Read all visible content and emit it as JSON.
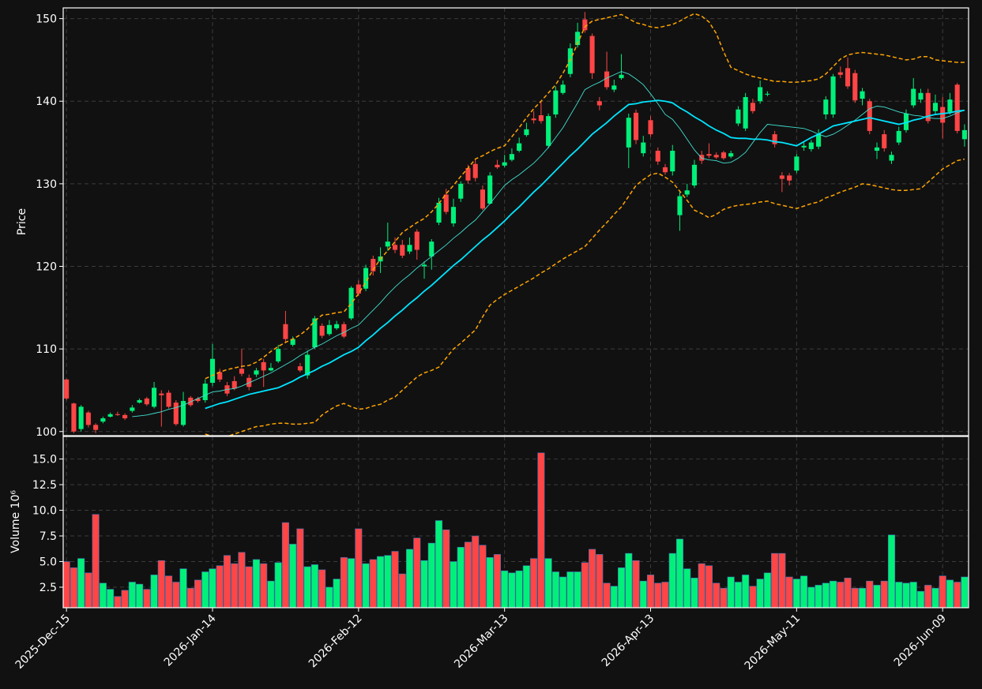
{
  "chart_data": {
    "type": "candlestick",
    "ylabel": "Price",
    "ylim": [
      99.5,
      151.3
    ],
    "yticks": [
      100,
      110,
      120,
      130,
      140,
      150
    ],
    "grid": true,
    "up_color": "#00f07a",
    "down_color": "#ff4545",
    "categories": [
      "2025-Dec-15",
      null,
      null,
      null,
      null,
      null,
      null,
      null,
      null,
      null,
      null,
      null,
      null,
      null,
      null,
      null,
      null,
      null,
      null,
      null,
      "2026-Jan-14",
      null,
      null,
      null,
      null,
      null,
      null,
      null,
      null,
      null,
      null,
      null,
      null,
      null,
      null,
      null,
      null,
      null,
      null,
      null,
      "2026-Feb-12",
      null,
      null,
      null,
      null,
      null,
      null,
      null,
      null,
      null,
      null,
      null,
      null,
      null,
      null,
      null,
      null,
      null,
      null,
      null,
      "2026-Mar-13",
      null,
      null,
      null,
      null,
      null,
      null,
      null,
      null,
      null,
      null,
      null,
      null,
      null,
      null,
      null,
      null,
      null,
      null,
      null,
      "2026-Apr-13",
      null,
      null,
      null,
      null,
      null,
      null,
      null,
      null,
      null,
      null,
      null,
      null,
      null,
      null,
      null,
      null,
      null,
      null,
      null,
      "2026-May-11",
      null,
      null,
      null,
      null,
      null,
      null,
      null,
      null,
      null,
      null,
      null,
      null,
      null,
      null,
      null,
      null,
      null,
      null,
      null,
      "2026-Jun-09",
      null,
      null,
      null
    ],
    "open": [
      106.3,
      103.4,
      100.3,
      102.3,
      100.8,
      101.2,
      101.8,
      102.1,
      102.0,
      102.5,
      103.5,
      104.0,
      103.0,
      104.6,
      104.7,
      103.5,
      100.8,
      104.1,
      104.0,
      103.8,
      105.9,
      107.2,
      105.6,
      106.1,
      107.6,
      106.5,
      106.9,
      108.4,
      107.4,
      108.5,
      113.0,
      110.5,
      107.9,
      106.8,
      110.2,
      112.8,
      111.8,
      112.5,
      113.0,
      113.7,
      117.8,
      117.3,
      120.9,
      120.6,
      122.4,
      122.6,
      122.6,
      121.8,
      124.2,
      120.0,
      121.2,
      125.3,
      128.7,
      125.2,
      128.2,
      131.9,
      132.4,
      129.3,
      127.6,
      132.3,
      132.2,
      132.9,
      134.0,
      135.9,
      137.9,
      138.3,
      134.6,
      138.4,
      141.0,
      143.3,
      146.8,
      149.9,
      147.9,
      140.0,
      143.6,
      141.4,
      142.8,
      134.4,
      138.6,
      133.7,
      137.7,
      134.0,
      132.0,
      131.5,
      126.2,
      128.7,
      129.8,
      133.5,
      133.6,
      133.5,
      133.8,
      133.3,
      137.3,
      136.7,
      139.8,
      140.0,
      140.8,
      136.0,
      131.0,
      131.0,
      131.6,
      134.4,
      134.2,
      134.5,
      138.4,
      138.4,
      143.5,
      144.0,
      143.4,
      140.3,
      140.0,
      134.0,
      136.0,
      132.8,
      135.0,
      136.5,
      139.5,
      140.2,
      141.0,
      138.8,
      139.3,
      138.7,
      142.0,
      135.4
    ],
    "high": [
      106.4,
      103.5,
      103.2,
      102.5,
      101.0,
      101.8,
      102.3,
      102.4,
      102.2,
      103.2,
      104.0,
      104.2,
      106.0,
      105.0,
      105.0,
      103.8,
      104.8,
      104.3,
      104.2,
      106.3,
      110.6,
      107.6,
      106.0,
      106.7,
      110.0,
      106.9,
      107.7,
      108.8,
      108.3,
      110.5,
      114.6,
      111.5,
      108.3,
      109.8,
      114.0,
      113.1,
      113.5,
      113.4,
      113.3,
      117.6,
      118.3,
      120.2,
      121.3,
      122.3,
      125.3,
      123.5,
      123.2,
      123.5,
      124.5,
      120.6,
      123.3,
      128.3,
      129.4,
      128.2,
      130.3,
      132.3,
      133.0,
      129.8,
      131.4,
      132.9,
      133.5,
      134.3,
      135.6,
      137.4,
      138.8,
      140.0,
      138.5,
      141.8,
      142.5,
      147.0,
      149.5,
      150.8,
      148.2,
      140.5,
      146.0,
      142.6,
      145.7,
      138.5,
      139.0,
      135.8,
      138.2,
      134.4,
      132.4,
      134.7,
      129.0,
      130.0,
      132.9,
      134.0,
      134.9,
      133.8,
      134.0,
      134.0,
      139.4,
      141.0,
      140.3,
      142.5,
      141.2,
      136.4,
      131.4,
      131.3,
      133.6,
      135.0,
      135.3,
      136.6,
      140.6,
      143.3,
      144.2,
      145.3,
      143.8,
      141.6,
      140.3,
      135.0,
      136.5,
      133.9,
      136.9,
      139.0,
      142.8,
      141.5,
      141.5,
      140.8,
      140.5,
      141.0,
      142.2,
      137.2
    ],
    "low": [
      103.8,
      99.8,
      100.0,
      100.5,
      99.8,
      101.0,
      101.7,
      101.9,
      101.4,
      102.3,
      103.4,
      103.1,
      102.8,
      100.6,
      102.8,
      100.7,
      100.6,
      103.0,
      103.5,
      103.5,
      105.5,
      106.0,
      104.3,
      105.0,
      106.7,
      105.0,
      106.6,
      105.4,
      107.3,
      108.3,
      110.7,
      110.3,
      107.2,
      106.4,
      110.0,
      111.3,
      111.6,
      112.3,
      111.3,
      113.5,
      116.4,
      117.0,
      118.9,
      119.2,
      121.9,
      121.6,
      121.0,
      121.5,
      120.8,
      118.5,
      119.6,
      125.0,
      126.3,
      124.8,
      127.8,
      130.0,
      130.3,
      126.8,
      127.5,
      131.8,
      132.0,
      132.7,
      133.8,
      135.7,
      137.3,
      137.3,
      134.3,
      138.0,
      140.8,
      142.9,
      146.5,
      148.3,
      142.7,
      138.9,
      141.4,
      141.1,
      142.6,
      131.9,
      134.8,
      133.3,
      135.7,
      132.3,
      131.1,
      131.0,
      124.3,
      128.4,
      129.5,
      132.4,
      133.1,
      133.0,
      132.9,
      133.1,
      137.0,
      136.4,
      138.5,
      139.7,
      140.6,
      134.4,
      129.0,
      129.8,
      131.3,
      134.0,
      133.9,
      134.2,
      137.8,
      138.0,
      142.8,
      141.5,
      139.8,
      139.5,
      136.0,
      133.0,
      133.9,
      132.4,
      134.7,
      136.2,
      139.2,
      139.8,
      137.3,
      138.4,
      135.5,
      138.4,
      136.1,
      134.5
    ],
    "close": [
      104.0,
      100.0,
      103.0,
      100.8,
      100.2,
      101.6,
      102.1,
      102.0,
      101.6,
      102.9,
      103.8,
      103.3,
      105.3,
      104.4,
      103.0,
      100.9,
      103.7,
      103.2,
      103.7,
      105.8,
      108.8,
      106.3,
      104.6,
      105.2,
      107.0,
      105.4,
      107.4,
      107.4,
      107.7,
      110.0,
      111.2,
      111.2,
      107.4,
      109.3,
      113.7,
      111.6,
      112.9,
      113.0,
      111.5,
      117.4,
      116.7,
      119.8,
      119.4,
      121.2,
      123.0,
      122.0,
      121.3,
      122.6,
      122.0,
      120.2,
      123.0,
      127.7,
      126.6,
      127.2,
      130.0,
      130.4,
      130.7,
      127.0,
      131.0,
      132.0,
      132.6,
      133.6,
      134.9,
      136.6,
      137.7,
      137.6,
      138.2,
      141.3,
      142.0,
      146.4,
      148.4,
      148.6,
      143.4,
      139.5,
      141.7,
      141.9,
      143.2,
      138.0,
      135.3,
      135.0,
      136.0,
      132.7,
      131.4,
      134.0,
      128.5,
      129.2,
      132.3,
      132.8,
      133.4,
      133.2,
      133.1,
      133.7,
      139.0,
      140.5,
      138.8,
      141.7,
      140.9,
      134.8,
      130.6,
      130.4,
      133.3,
      134.6,
      135.0,
      136.0,
      140.2,
      143.0,
      143.2,
      141.8,
      140.1,
      141.2,
      136.4,
      134.4,
      134.3,
      133.5,
      136.4,
      138.5,
      141.5,
      141.0,
      137.6,
      139.8,
      137.4,
      140.2,
      136.4,
      136.5
    ],
    "lines": [
      {
        "color": "#40e0d0",
        "width": 0.9,
        "dash": false,
        "values": [
          null,
          null,
          null,
          null,
          null,
          null,
          null,
          null,
          null,
          101.8,
          101.9,
          102.0,
          102.2,
          102.4,
          102.7,
          102.9,
          103.2,
          103.6,
          104.0,
          104.4,
          104.8,
          104.9,
          105.1,
          105.2,
          105.5,
          105.9,
          106.3,
          106.7,
          107.1,
          107.6,
          108.1,
          108.6,
          109.2,
          109.7,
          110.2,
          110.6,
          111.1,
          111.6,
          112.0,
          112.5,
          112.9,
          113.8,
          114.7,
          115.6,
          116.6,
          117.5,
          118.3,
          119.0,
          119.8,
          120.5,
          121.2,
          121.9,
          122.6,
          123.4,
          124.1,
          124.9,
          125.6,
          126.6,
          127.6,
          128.7,
          129.8,
          130.5,
          131.1,
          131.8,
          132.5,
          133.4,
          134.4,
          135.6,
          136.8,
          138.3,
          139.8,
          141.4,
          141.9,
          142.3,
          142.8,
          143.2,
          143.6,
          143.3,
          142.7,
          142.0,
          140.9,
          139.7,
          138.4,
          137.8,
          136.7,
          135.4,
          134.1,
          133.1,
          132.9,
          132.8,
          132.5,
          132.6,
          133.1,
          133.8,
          135.0,
          136.2,
          137.2,
          137.1,
          137.0,
          136.9,
          136.8,
          136.7,
          136.4,
          136.0,
          135.7,
          136.0,
          136.5,
          137.1,
          137.7,
          138.4,
          139.1,
          139.4,
          139.3,
          139.0,
          138.7,
          138.5,
          138.3,
          138.2,
          138.0,
          137.9,
          137.9,
          138.2,
          138.6,
          138.9
        ]
      },
      {
        "color": "#00e5ff",
        "width": 1.8,
        "dash": false,
        "values": [
          null,
          null,
          null,
          null,
          null,
          null,
          null,
          null,
          null,
          null,
          null,
          null,
          null,
          null,
          null,
          null,
          null,
          null,
          null,
          102.8,
          103.1,
          103.4,
          103.6,
          103.9,
          104.2,
          104.5,
          104.7,
          104.9,
          105.1,
          105.3,
          105.7,
          106.1,
          106.6,
          107.0,
          107.4,
          107.9,
          108.3,
          108.8,
          109.3,
          109.7,
          110.2,
          111.0,
          111.7,
          112.5,
          113.2,
          114.0,
          114.7,
          115.5,
          116.2,
          117.0,
          117.7,
          118.5,
          119.3,
          120.1,
          120.8,
          121.6,
          122.4,
          123.2,
          123.9,
          124.7,
          125.5,
          126.4,
          127.2,
          128.1,
          129.0,
          129.8,
          130.7,
          131.6,
          132.5,
          133.4,
          134.2,
          135.1,
          136.0,
          136.7,
          137.4,
          138.2,
          138.9,
          139.6,
          139.7,
          139.9,
          140.0,
          140.1,
          140.0,
          139.8,
          139.2,
          138.7,
          138.1,
          137.6,
          137.0,
          136.5,
          136.1,
          135.6,
          135.5,
          135.5,
          135.4,
          135.4,
          135.3,
          135.1,
          135.0,
          134.8,
          134.6,
          135.1,
          135.6,
          136.0,
          136.5,
          137.0,
          137.2,
          137.4,
          137.6,
          137.8,
          138.0,
          137.8,
          137.6,
          137.4,
          137.2,
          137.4,
          137.7,
          137.9,
          138.2,
          138.4,
          138.5,
          138.6,
          138.8,
          138.9
        ]
      },
      {
        "color": "#ffa500",
        "width": 1.5,
        "dash": true,
        "values": [
          null,
          null,
          null,
          null,
          null,
          null,
          null,
          null,
          null,
          null,
          null,
          null,
          null,
          null,
          null,
          null,
          null,
          null,
          null,
          106.4,
          106.8,
          107.2,
          107.5,
          107.7,
          107.9,
          108.0,
          108.4,
          109.0,
          109.7,
          110.3,
          110.8,
          111.2,
          111.7,
          112.4,
          113.4,
          114.1,
          114.2,
          114.4,
          114.5,
          115.5,
          116.7,
          118.1,
          119.6,
          120.9,
          121.9,
          123.0,
          124.1,
          124.7,
          125.3,
          125.8,
          126.6,
          127.6,
          128.8,
          129.8,
          130.9,
          131.9,
          133.0,
          133.4,
          133.9,
          134.3,
          134.6,
          135.7,
          136.8,
          138.0,
          139.1,
          140.0,
          141.0,
          142.0,
          143.4,
          145.0,
          147.0,
          149.0,
          149.7,
          149.9,
          150.1,
          150.3,
          150.5,
          150.0,
          149.5,
          149.3,
          149.0,
          148.9,
          149.1,
          149.3,
          149.7,
          150.2,
          150.6,
          150.3,
          149.6,
          148.2,
          146.0,
          144.1,
          143.7,
          143.3,
          143.0,
          142.8,
          142.6,
          142.4,
          142.4,
          142.3,
          142.3,
          142.4,
          142.5,
          142.7,
          143.3,
          144.2,
          145.1,
          145.6,
          145.8,
          145.9,
          145.8,
          145.7,
          145.6,
          145.4,
          145.2,
          145.0,
          145.1,
          145.4,
          145.4,
          145.0,
          144.9,
          144.8,
          144.7,
          144.7
        ]
      },
      {
        "color": "#ffa500",
        "width": 1.5,
        "dash": true,
        "values": [
          null,
          null,
          null,
          null,
          null,
          null,
          null,
          null,
          null,
          null,
          null,
          null,
          null,
          null,
          null,
          null,
          null,
          null,
          null,
          99.7,
          99.4,
          99.2,
          99.4,
          99.7,
          100.0,
          100.3,
          100.6,
          100.7,
          100.9,
          101.0,
          101.0,
          100.9,
          100.9,
          101.0,
          101.1,
          102.0,
          102.6,
          103.1,
          103.4,
          103.0,
          102.7,
          102.8,
          103.1,
          103.3,
          103.8,
          104.2,
          105.0,
          105.8,
          106.6,
          107.1,
          107.4,
          107.8,
          108.9,
          110.0,
          110.7,
          111.5,
          112.3,
          113.9,
          115.3,
          116.0,
          116.6,
          117.1,
          117.6,
          118.1,
          118.6,
          119.2,
          119.7,
          120.3,
          120.9,
          121.4,
          121.9,
          122.4,
          123.4,
          124.4,
          125.3,
          126.3,
          127.2,
          128.5,
          129.8,
          130.5,
          131.1,
          131.3,
          130.8,
          130.2,
          129.1,
          128.0,
          126.8,
          126.4,
          125.9,
          126.3,
          126.9,
          127.2,
          127.4,
          127.5,
          127.6,
          127.8,
          127.9,
          127.6,
          127.4,
          127.2,
          127.0,
          127.3,
          127.6,
          127.8,
          128.3,
          128.6,
          129.0,
          129.3,
          129.6,
          130.0,
          129.9,
          129.7,
          129.5,
          129.3,
          129.2,
          129.2,
          129.3,
          129.4,
          130.2,
          131.0,
          131.8,
          132.3,
          132.8,
          133.0
        ]
      }
    ],
    "volume": {
      "type": "bar",
      "ylabel": "Volume  10⁶",
      "ylim": [
        0.5,
        17.2
      ],
      "yticks": [
        2.5,
        {
          "value": 5,
          "label": "5.0"
        },
        7.5,
        {
          "value": 10,
          "label": "10.0"
        },
        12.5,
        {
          "value": 15,
          "label": "15.0"
        }
      ],
      "values": [
        5.0,
        4.4,
        5.3,
        3.9,
        9.6,
        2.9,
        2.3,
        1.6,
        2.2,
        3.0,
        2.8,
        2.3,
        3.7,
        5.1,
        3.6,
        3.0,
        4.3,
        2.4,
        3.2,
        4.0,
        4.3,
        4.6,
        5.6,
        4.8,
        5.9,
        4.5,
        5.2,
        4.8,
        3.1,
        4.9,
        8.8,
        6.7,
        8.2,
        4.5,
        4.7,
        4.2,
        2.5,
        3.3,
        5.4,
        5.3,
        8.2,
        4.8,
        5.2,
        5.5,
        5.6,
        6.0,
        3.8,
        6.2,
        7.3,
        5.1,
        6.8,
        9.0,
        8.1,
        5.0,
        6.4,
        6.9,
        7.5,
        6.6,
        5.4,
        5.7,
        4.1,
        3.9,
        4.1,
        4.6,
        5.3,
        15.6,
        5.3,
        4.0,
        3.5,
        4.0,
        4.0,
        4.9,
        6.2,
        5.7,
        2.9,
        2.6,
        4.4,
        5.8,
        5.1,
        3.1,
        3.7,
        2.9,
        3.0,
        5.8,
        7.2,
        4.3,
        3.4,
        4.8,
        4.6,
        2.9,
        2.4,
        3.5,
        3.0,
        3.7,
        2.6,
        3.3,
        3.9,
        5.8,
        5.8,
        3.5,
        3.3,
        3.6,
        2.5,
        2.7,
        2.9,
        3.1,
        3.0,
        3.4,
        2.4,
        2.4,
        3.1,
        2.7,
        3.1,
        7.6,
        3.0,
        2.9,
        3.0,
        2.1,
        2.7,
        2.4,
        3.6,
        3.2,
        3.0,
        3.5
      ]
    }
  }
}
